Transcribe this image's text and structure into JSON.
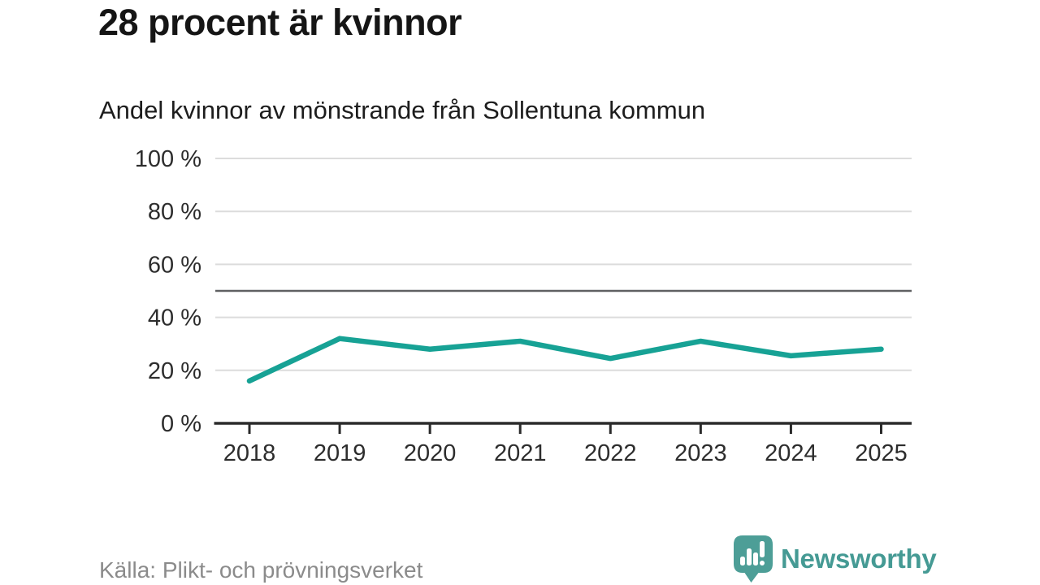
{
  "header": {
    "title": "28 procent är kvinnor",
    "subtitle": "Andel kvinnor av mönstrande från Sollentuna kommun"
  },
  "chart_data": {
    "type": "line",
    "title": "28 procent är kvinnor",
    "subtitle": "Andel kvinnor av mönstrande från Sollentuna kommun",
    "categories": [
      "2018",
      "2019",
      "2020",
      "2021",
      "2022",
      "2023",
      "2024",
      "2025"
    ],
    "series": [
      {
        "name": "Andel kvinnor av mönstrande",
        "values": [
          16,
          32,
          28,
          31,
          24.5,
          31,
          25.5,
          28
        ]
      }
    ],
    "xlabel": "",
    "ylabel": "",
    "ylim": [
      0,
      100
    ],
    "yticks": [
      0,
      20,
      40,
      60,
      80,
      100
    ],
    "ytick_labels": [
      "0 %",
      "20 %",
      "40 %",
      "60 %",
      "80 %",
      "100 %"
    ],
    "reference_line": 50,
    "grid": true,
    "legend_position": "none",
    "colors": {
      "line": "#17a295",
      "grid": "#dcdcdc",
      "axis": "#2b2b2b",
      "reference_line": "#5f6062",
      "tick_text": "#2d2d2d"
    }
  },
  "footer": {
    "source": "Källa: Plikt- och prövningsverket",
    "brand": "Newsworthy",
    "brand_color": "#459a94",
    "icon_color": "#4d9e97"
  }
}
